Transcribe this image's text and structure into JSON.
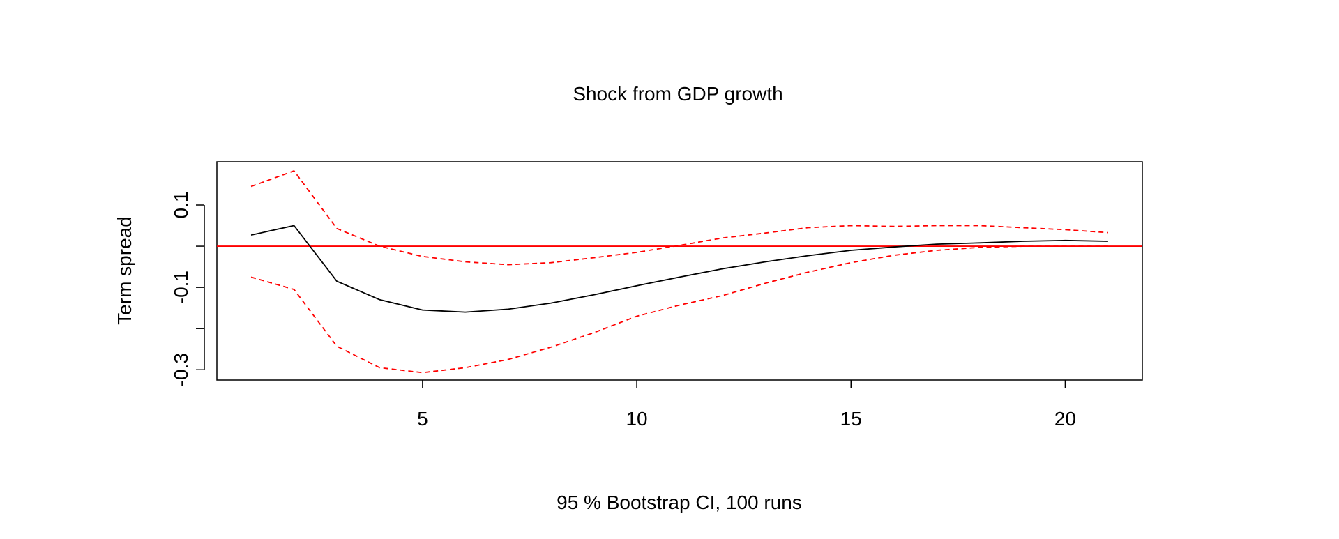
{
  "chart_data": {
    "type": "line",
    "title": "Shock from GDP growth",
    "xlabel": "95 % Bootstrap CI,  100 runs",
    "ylabel": "Term spread",
    "x": [
      1,
      2,
      3,
      4,
      5,
      6,
      7,
      8,
      9,
      10,
      11,
      12,
      13,
      14,
      15,
      16,
      17,
      18,
      19,
      20,
      21
    ],
    "xlim": [
      0.2,
      21.8
    ],
    "ylim": [
      -0.325,
      0.205
    ],
    "xticks": [
      5,
      10,
      15,
      20
    ],
    "yticks": [
      -0.3,
      -0.2,
      -0.1,
      0.0,
      0.1
    ],
    "ytick_labels": [
      "-0.3",
      "",
      "-0.1",
      "",
      "0.1"
    ],
    "grid": false,
    "hline": {
      "y": 0,
      "color": "#ff0000"
    },
    "series": [
      {
        "role": "irf",
        "color": "#000000",
        "dash": "solid",
        "values": [
          0.027,
          0.05,
          -0.085,
          -0.13,
          -0.155,
          -0.16,
          -0.153,
          -0.138,
          -0.118,
          -0.096,
          -0.075,
          -0.055,
          -0.038,
          -0.023,
          -0.01,
          -0.002,
          0.005,
          0.008,
          0.012,
          0.014,
          0.012
        ]
      },
      {
        "role": "upper",
        "color": "#ff0000",
        "dash": "dashed",
        "values": [
          0.145,
          0.183,
          0.043,
          0.0,
          -0.025,
          -0.038,
          -0.045,
          -0.04,
          -0.028,
          -0.015,
          0.002,
          0.02,
          0.032,
          0.045,
          0.05,
          0.048,
          0.05,
          0.05,
          0.045,
          0.04,
          0.033
        ]
      },
      {
        "role": "lower",
        "color": "#ff0000",
        "dash": "dashed",
        "values": [
          -0.075,
          -0.105,
          -0.243,
          -0.295,
          -0.307,
          -0.295,
          -0.275,
          -0.245,
          -0.21,
          -0.17,
          -0.143,
          -0.12,
          -0.09,
          -0.063,
          -0.04,
          -0.022,
          -0.01,
          -0.003,
          0.0,
          0.0,
          0.0
        ]
      }
    ]
  }
}
